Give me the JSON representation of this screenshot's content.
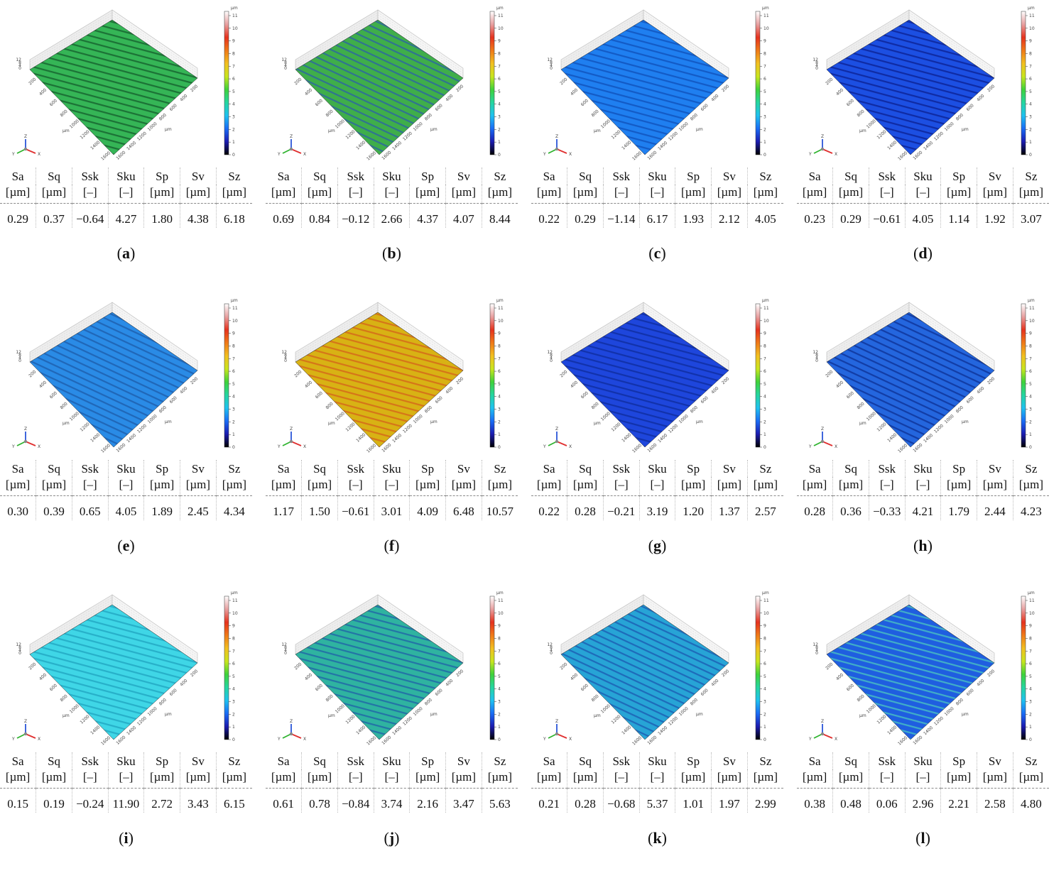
{
  "headers": [
    {
      "name": "Sa",
      "unit": "[µm]"
    },
    {
      "name": "Sq",
      "unit": "[µm]"
    },
    {
      "name": "Ssk",
      "unit": "[–]"
    },
    {
      "name": "Sku",
      "unit": "[–]"
    },
    {
      "name": "Sp",
      "unit": "[µm]"
    },
    {
      "name": "Sv",
      "unit": "[µm]"
    },
    {
      "name": "Sz",
      "unit": "[µm]"
    }
  ],
  "colorbar": {
    "unit": "µm",
    "ticks": [
      "11",
      "10",
      "9",
      "8",
      "7",
      "6",
      "5",
      "4",
      "3",
      "2",
      "1",
      "0"
    ]
  },
  "axes": {
    "z_label": "µm",
    "z_ticks": [
      "12",
      "8",
      "4",
      "0"
    ],
    "x_label": "µm",
    "y_label": "µm",
    "x_ticks": [
      "200",
      "400",
      "600",
      "800",
      "1000",
      "1200",
      "1400",
      "1600"
    ],
    "y_ticks": [
      "1600",
      "1400",
      "1200",
      "1000",
      "800",
      "600",
      "400",
      "200"
    ],
    "triad": {
      "z": "Z",
      "y": "Y",
      "x": "X"
    }
  },
  "panels": [
    {
      "label": "a",
      "values": [
        "0.29",
        "0.37",
        "−0.64",
        "4.27",
        "1.80",
        "4.38",
        "6.18"
      ],
      "surface_color": "#35b556",
      "stripe_color": "#145c2a"
    },
    {
      "label": "b",
      "values": [
        "0.69",
        "0.84",
        "−0.12",
        "2.66",
        "4.37",
        "4.07",
        "8.44"
      ],
      "surface_color": "#3fae4a",
      "stripe_color": "#2a5fa8"
    },
    {
      "label": "c",
      "values": [
        "0.22",
        "0.29",
        "−1.14",
        "6.17",
        "1.93",
        "2.12",
        "4.05"
      ],
      "surface_color": "#1f7ff0",
      "stripe_color": "#0f4fb8"
    },
    {
      "label": "d",
      "values": [
        "0.23",
        "0.29",
        "−0.61",
        "4.05",
        "1.14",
        "1.92",
        "3.07"
      ],
      "surface_color": "#1c4fe2",
      "stripe_color": "#0a1f8f"
    },
    {
      "label": "e",
      "values": [
        "0.30",
        "0.39",
        "0.65",
        "4.05",
        "1.89",
        "2.45",
        "4.34"
      ],
      "surface_color": "#2a8be6",
      "stripe_color": "#1c5aa8"
    },
    {
      "label": "f",
      "values": [
        "1.17",
        "1.50",
        "−0.61",
        "3.01",
        "4.09",
        "6.48",
        "10.57"
      ],
      "surface_color": "#d8b214",
      "stripe_color": "#d4601a"
    },
    {
      "label": "g",
      "values": [
        "0.22",
        "0.28",
        "−0.21",
        "3.19",
        "1.20",
        "1.37",
        "2.57"
      ],
      "surface_color": "#1e46dc",
      "stripe_color": "#0d2a9a"
    },
    {
      "label": "h",
      "values": [
        "0.28",
        "0.36",
        "−0.33",
        "4.21",
        "1.79",
        "2.44",
        "4.23"
      ],
      "surface_color": "#2466de",
      "stripe_color": "#0c2f92"
    },
    {
      "label": "i",
      "values": [
        "0.15",
        "0.19",
        "−0.24",
        "11.90",
        "2.72",
        "3.43",
        "6.15"
      ],
      "surface_color": "#3fd6e6",
      "stripe_color": "#1ea3bf"
    },
    {
      "label": "j",
      "values": [
        "0.61",
        "0.78",
        "−0.84",
        "3.74",
        "2.16",
        "3.47",
        "5.63"
      ],
      "surface_color": "#2fb3a0",
      "stripe_color": "#1e5fa8"
    },
    {
      "label": "k",
      "values": [
        "0.21",
        "0.28",
        "−0.68",
        "5.37",
        "1.01",
        "1.97",
        "2.99"
      ],
      "surface_color": "#27a4d6",
      "stripe_color": "#1a58b0"
    },
    {
      "label": "l",
      "values": [
        "0.38",
        "0.48",
        "0.06",
        "2.96",
        "2.21",
        "2.58",
        "4.80"
      ],
      "surface_color": "#1f5ee0",
      "stripe_color": "#4bc7c0"
    }
  ]
}
